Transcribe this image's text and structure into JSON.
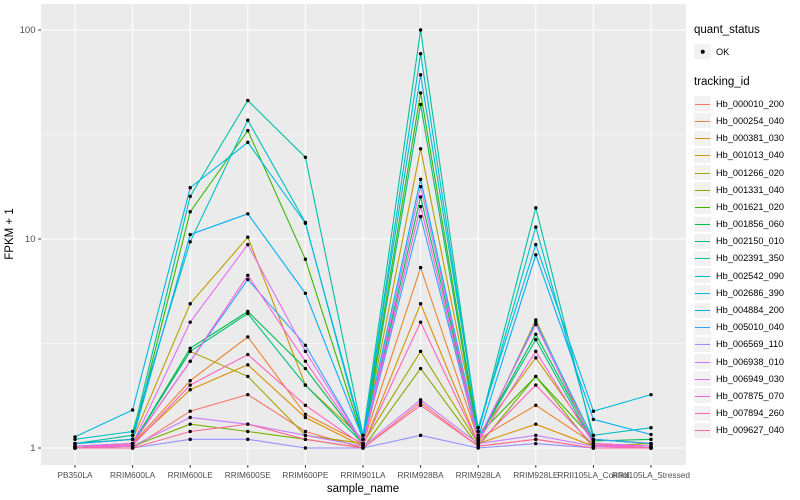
{
  "panel": {
    "bg": "#EBEBEB",
    "grid": "#FFFFFF",
    "tick_color": "#333333"
  },
  "y_axis": {
    "title": "FPKM + 1",
    "tick_labels": [
      "1",
      "10",
      "100"
    ],
    "tick_values": [
      1,
      10,
      100
    ]
  },
  "x_axis": {
    "title": "sample_name"
  },
  "legend": {
    "quant_status": {
      "title": "quant_status",
      "items": [
        {
          "label": "OK",
          "symbol": "point",
          "color": "#000000"
        }
      ]
    },
    "tracking_id": {
      "title": "tracking_id"
    }
  },
  "chart_data": {
    "type": "line",
    "title": "",
    "xlabel": "sample_name",
    "ylabel": "FPKM + 1",
    "y_scale": "log10",
    "ylim": [
      0.93,
      115
    ],
    "grid": true,
    "legend_position": "right",
    "point_color": "#000000",
    "categories": [
      "PB350LA",
      "RRIM600LA",
      "RRIM600LE",
      "RRIM600SE",
      "RRIM600PE",
      "RRIM901LA",
      "RRIM928BA",
      "RRIM928LA",
      "RRIM928LE",
      "RRII105LA_Control",
      "RRII105LA_Stressed"
    ],
    "series": [
      {
        "name": "Hb_000010_200",
        "color": "#F8766D",
        "values": [
          1.0,
          1.0,
          1.5,
          1.8,
          1.2,
          1.0,
          1.65,
          1.02,
          1.1,
          1.0,
          1.0
        ]
      },
      {
        "name": "Hb_000254_040",
        "color": "#EA8331",
        "values": [
          1.0,
          1.05,
          2.1,
          3.4,
          1.45,
          1.05,
          7.3,
          1.1,
          1.6,
          1.05,
          1.02
        ]
      },
      {
        "name": "Hb_000381_030",
        "color": "#D89000",
        "values": [
          1.02,
          1.05,
          1.9,
          2.5,
          1.4,
          1.02,
          4.9,
          1.05,
          1.3,
          1.02,
          1.05
        ]
      },
      {
        "name": "Hb_001013_040",
        "color": "#C09B00",
        "values": [
          1.05,
          1.1,
          4.9,
          10.2,
          2.0,
          1.1,
          27.0,
          1.15,
          2.7,
          1.1,
          1.05
        ]
      },
      {
        "name": "Hb_001266_020",
        "color": "#A3A500",
        "values": [
          1.0,
          1.05,
          2.9,
          2.2,
          1.15,
          1.05,
          2.9,
          1.05,
          4.1,
          1.05,
          1.0
        ]
      },
      {
        "name": "Hb_001331_040",
        "color": "#7CAE00",
        "values": [
          1.0,
          1.02,
          1.3,
          1.2,
          1.1,
          1.0,
          2.4,
          1.02,
          2.2,
          1.0,
          1.0
        ]
      },
      {
        "name": "Hb_001621_020",
        "color": "#39B600",
        "values": [
          1.05,
          1.1,
          13.5,
          33.0,
          8.0,
          1.1,
          50.0,
          1.15,
          2.2,
          1.1,
          1.05
        ]
      },
      {
        "name": "Hb_001856_060",
        "color": "#00BB4E",
        "values": [
          1.0,
          1.05,
          3.0,
          4.5,
          2.4,
          1.05,
          15.9,
          1.1,
          3.5,
          1.08,
          1.1
        ]
      },
      {
        "name": "Hb_002150_010",
        "color": "#00BF7D",
        "values": [
          1.02,
          1.05,
          2.9,
          4.4,
          2.0,
          1.05,
          44.0,
          1.1,
          3.3,
          1.05,
          1.02
        ]
      },
      {
        "name": "Hb_002391_350",
        "color": "#00C1A3",
        "values": [
          1.05,
          1.15,
          16.0,
          46.0,
          24.6,
          1.15,
          100.0,
          1.2,
          14.1,
          1.1,
          1.05
        ]
      },
      {
        "name": "Hb_002542_090",
        "color": "#00BFC4",
        "values": [
          1.1,
          1.2,
          9.7,
          37.0,
          12.0,
          1.1,
          77.0,
          1.2,
          11.4,
          1.15,
          1.25
        ]
      },
      {
        "name": "Hb_002686_390",
        "color": "#00BADE",
        "values": [
          1.13,
          1.52,
          17.6,
          29.0,
          11.9,
          1.15,
          61.0,
          1.25,
          9.4,
          1.5,
          1.8
        ]
      },
      {
        "name": "Hb_004884_200",
        "color": "#00B0F6",
        "values": [
          1.05,
          1.1,
          10.5,
          13.2,
          5.5,
          1.1,
          19.3,
          1.12,
          8.4,
          1.37,
          1.16
        ]
      },
      {
        "name": "Hb_005010_040",
        "color": "#35A2FF",
        "values": [
          1.02,
          1.05,
          2.6,
          6.4,
          3.1,
          1.05,
          12.8,
          1.08,
          4.0,
          1.1,
          1.05
        ]
      },
      {
        "name": "Hb_006569_110",
        "color": "#9590FF",
        "values": [
          1.0,
          1.0,
          1.1,
          1.1,
          1.0,
          1.0,
          1.15,
          1.0,
          1.05,
          1.0,
          1.0
        ]
      },
      {
        "name": "Hb_006938_010",
        "color": "#C77CFF",
        "values": [
          1.0,
          1.02,
          1.4,
          1.3,
          1.15,
          1.02,
          1.7,
          1.05,
          1.15,
          1.02,
          1.0
        ]
      },
      {
        "name": "Hb_006949_030",
        "color": "#E76BF3",
        "values": [
          1.02,
          1.05,
          4.0,
          9.4,
          2.9,
          1.05,
          17.8,
          1.1,
          3.9,
          1.05,
          1.02
        ]
      },
      {
        "name": "Hb_007875_070",
        "color": "#FA62DB",
        "values": [
          1.0,
          1.05,
          2.6,
          6.7,
          2.6,
          1.05,
          14.3,
          1.08,
          2.9,
          1.05,
          1.0
        ]
      },
      {
        "name": "Hb_007894_260",
        "color": "#FF62BC",
        "values": [
          1.0,
          1.03,
          2.0,
          2.8,
          1.6,
          1.03,
          4.0,
          1.05,
          2.0,
          1.03,
          1.0
        ]
      },
      {
        "name": "Hb_009627_040",
        "color": "#FF6A98",
        "values": [
          1.0,
          1.0,
          1.2,
          1.3,
          1.1,
          1.0,
          1.6,
          1.02,
          1.1,
          1.0,
          1.0
        ]
      }
    ]
  }
}
